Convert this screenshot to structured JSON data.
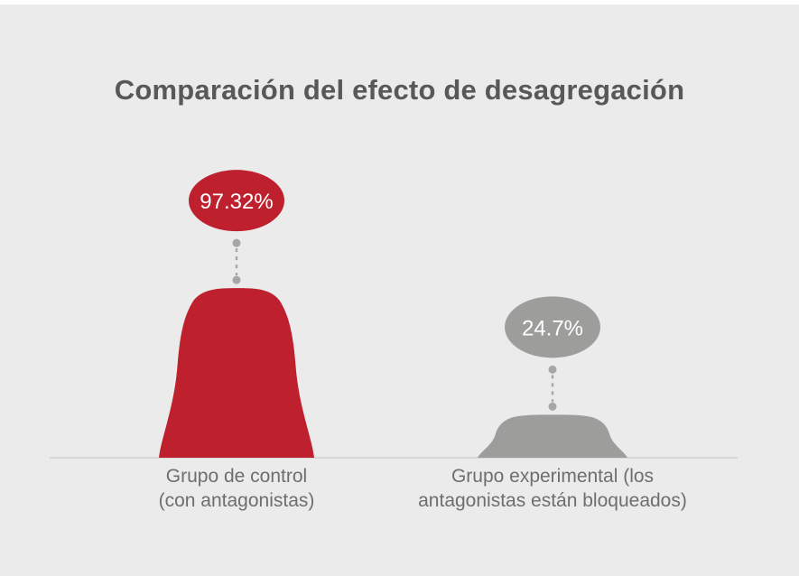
{
  "chart_data": {
    "type": "area",
    "title": "Comparación del efecto de desagregación",
    "categories": [
      "Grupo de control (con antagonistas)",
      "Grupo experimental (los antagonistas están bloqueados)"
    ],
    "values": [
      97.32,
      24.7
    ],
    "unit": "%",
    "ylim": [
      0,
      100
    ],
    "grid": false,
    "legend": false,
    "groups": [
      {
        "label": "Grupo de control (con antagonistas)",
        "label_lines": [
          "Grupo de control",
          "(con antagonistas)"
        ],
        "value": 97.32,
        "value_label": "97.32%",
        "color": "#be202e"
      },
      {
        "label": "Grupo experimental (los antagonistas están bloqueados)",
        "label_lines": [
          "Grupo experimental (los",
          "antagonistas están bloqueados)"
        ],
        "value": 24.7,
        "value_label": "24.7%",
        "color": "#9d9d9c"
      }
    ],
    "colors": {
      "background": "#ebebeb",
      "title_text": "#57585a",
      "category_text": "#6d6e70",
      "baseline": "#d2d2d2",
      "connector": "#a6a6a6",
      "bubble_text": "#ffffff"
    }
  }
}
